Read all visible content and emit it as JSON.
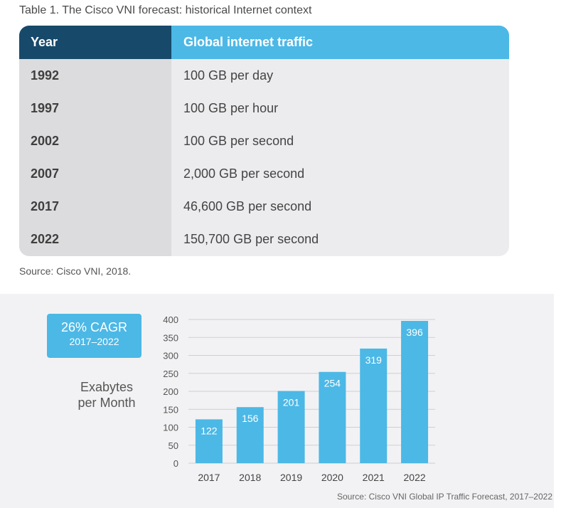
{
  "table": {
    "caption": "Table 1.  The Cisco VNI forecast: historical Internet context",
    "headers": {
      "year": "Year",
      "traffic": "Global internet traffic"
    },
    "rows": [
      {
        "year": "1992",
        "traffic": "100 GB per day"
      },
      {
        "year": "1997",
        "traffic": "100 GB per hour"
      },
      {
        "year": "2002",
        "traffic": "100 GB per second"
      },
      {
        "year": "2007",
        "traffic": "2,000 GB per second"
      },
      {
        "year": "2017",
        "traffic": "46,600 GB per second"
      },
      {
        "year": "2022",
        "traffic": "150,700 GB per second"
      }
    ],
    "source": "Source: Cisco VNI, 2018."
  },
  "callout": {
    "cagr": "26% CAGR",
    "range": "2017–2022"
  },
  "colors": {
    "bar": "#4cb8e6",
    "header_dark": "#17496a",
    "header_light": "#4cb8e6"
  },
  "chart_data": {
    "type": "bar",
    "categories": [
      "2017",
      "2018",
      "2019",
      "2020",
      "2021",
      "2022"
    ],
    "values": [
      122,
      156,
      201,
      254,
      319,
      396
    ],
    "ylabel": "Exabytes per Month",
    "ylim": [
      0,
      400
    ],
    "yticks": [
      0,
      50,
      100,
      150,
      200,
      250,
      300,
      350,
      400
    ],
    "grid": true,
    "source": "Source: Cisco VNI Global IP Traffic Forecast, 2017–2022"
  }
}
